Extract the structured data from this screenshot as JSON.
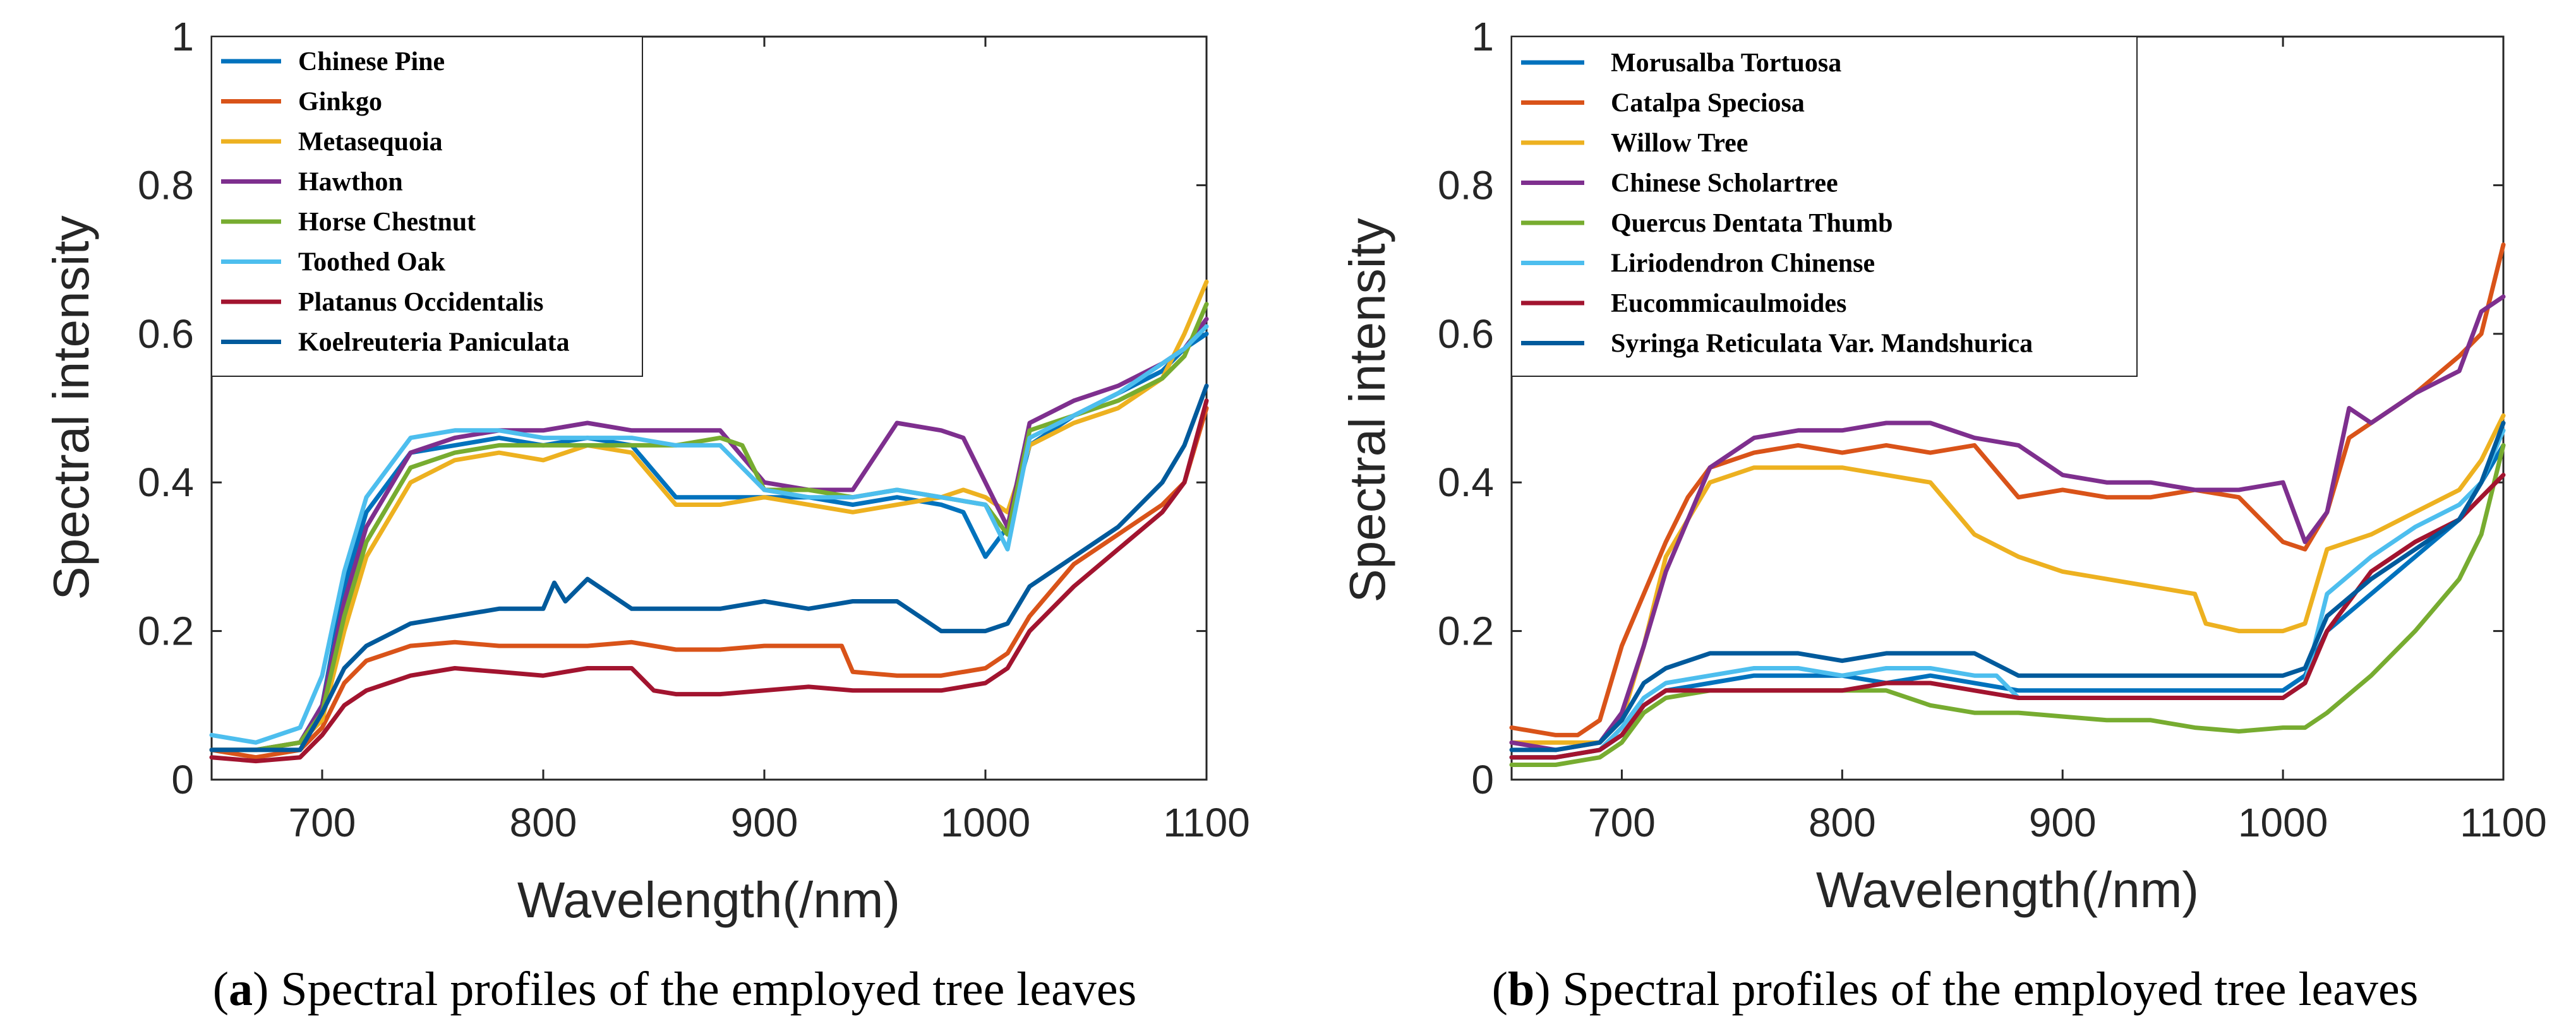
{
  "chart_data": [
    {
      "type": "line",
      "panel": "a",
      "caption_letter": "a",
      "caption_text": ") Spectral profiles of the employed tree leaves",
      "xlabel": "Wavelength(/nm)",
      "ylabel": "Spectral intensity",
      "xlim": [
        650,
        1100
      ],
      "ylim": [
        0,
        1
      ],
      "xticks": [
        700,
        800,
        900,
        1000,
        1100
      ],
      "yticks": [
        0,
        0.2,
        0.4,
        0.6,
        0.8,
        1
      ],
      "ytick_labels": [
        "0",
        "0.2",
        "0.4",
        "0.6",
        "0.8",
        "1"
      ],
      "legend_position": "top-left",
      "series": [
        {
          "name": "Chinese Pine",
          "color": "#0072BD",
          "x": [
            650,
            670,
            690,
            700,
            710,
            720,
            740,
            760,
            780,
            800,
            820,
            840,
            860,
            880,
            900,
            920,
            940,
            960,
            980,
            990,
            1000,
            1010,
            1020,
            1040,
            1060,
            1080,
            1090,
            1100
          ],
          "y": [
            0.04,
            0.04,
            0.05,
            0.1,
            0.26,
            0.36,
            0.44,
            0.45,
            0.46,
            0.45,
            0.46,
            0.45,
            0.38,
            0.38,
            0.38,
            0.38,
            0.37,
            0.38,
            0.37,
            0.36,
            0.3,
            0.34,
            0.45,
            0.49,
            0.52,
            0.55,
            0.58,
            0.6
          ]
        },
        {
          "name": "Ginkgo",
          "color": "#D95319",
          "x": [
            650,
            670,
            690,
            700,
            710,
            720,
            740,
            760,
            780,
            800,
            820,
            840,
            860,
            880,
            900,
            920,
            935,
            940,
            960,
            980,
            1000,
            1010,
            1020,
            1040,
            1060,
            1080,
            1090,
            1100
          ],
          "y": [
            0.04,
            0.03,
            0.04,
            0.07,
            0.13,
            0.16,
            0.18,
            0.185,
            0.18,
            0.18,
            0.18,
            0.185,
            0.175,
            0.175,
            0.18,
            0.18,
            0.18,
            0.145,
            0.14,
            0.14,
            0.15,
            0.17,
            0.22,
            0.29,
            0.33,
            0.37,
            0.4,
            0.5
          ]
        },
        {
          "name": "Metasequoia",
          "color": "#EDB120",
          "x": [
            650,
            670,
            690,
            700,
            710,
            720,
            740,
            760,
            780,
            800,
            820,
            840,
            860,
            880,
            900,
            920,
            940,
            960,
            980,
            990,
            1000,
            1010,
            1020,
            1040,
            1060,
            1080,
            1090,
            1100
          ],
          "y": [
            0.04,
            0.04,
            0.05,
            0.08,
            0.2,
            0.3,
            0.4,
            0.43,
            0.44,
            0.43,
            0.45,
            0.44,
            0.37,
            0.37,
            0.38,
            0.37,
            0.36,
            0.37,
            0.38,
            0.39,
            0.38,
            0.36,
            0.45,
            0.48,
            0.5,
            0.54,
            0.6,
            0.67
          ]
        },
        {
          "name": "Hawthon",
          "color": "#7E2F8E",
          "x": [
            650,
            670,
            690,
            700,
            710,
            720,
            740,
            760,
            780,
            800,
            820,
            840,
            860,
            880,
            900,
            920,
            940,
            960,
            980,
            990,
            1000,
            1010,
            1020,
            1040,
            1060,
            1080,
            1090,
            1100
          ],
          "y": [
            0.04,
            0.04,
            0.05,
            0.1,
            0.24,
            0.34,
            0.44,
            0.46,
            0.47,
            0.47,
            0.48,
            0.47,
            0.47,
            0.47,
            0.4,
            0.39,
            0.39,
            0.48,
            0.47,
            0.46,
            0.4,
            0.34,
            0.48,
            0.51,
            0.53,
            0.56,
            0.58,
            0.62
          ]
        },
        {
          "name": "Horse Chestnut",
          "color": "#77AC30",
          "x": [
            650,
            670,
            690,
            700,
            710,
            720,
            740,
            760,
            780,
            800,
            820,
            840,
            860,
            880,
            890,
            900,
            920,
            940,
            960,
            980,
            1000,
            1010,
            1020,
            1040,
            1060,
            1080,
            1090,
            1100
          ],
          "y": [
            0.04,
            0.04,
            0.05,
            0.09,
            0.22,
            0.32,
            0.42,
            0.44,
            0.45,
            0.45,
            0.45,
            0.45,
            0.45,
            0.46,
            0.45,
            0.39,
            0.39,
            0.38,
            0.39,
            0.38,
            0.37,
            0.33,
            0.47,
            0.49,
            0.51,
            0.54,
            0.57,
            0.64
          ]
        },
        {
          "name": "Toothed Oak",
          "color": "#4DBEEE",
          "x": [
            650,
            670,
            690,
            700,
            710,
            720,
            740,
            760,
            780,
            800,
            820,
            840,
            860,
            880,
            900,
            920,
            940,
            960,
            980,
            1000,
            1010,
            1020,
            1040,
            1060,
            1080,
            1090,
            1100
          ],
          "y": [
            0.06,
            0.05,
            0.07,
            0.14,
            0.28,
            0.38,
            0.46,
            0.47,
            0.47,
            0.46,
            0.46,
            0.46,
            0.45,
            0.45,
            0.39,
            0.38,
            0.38,
            0.39,
            0.38,
            0.37,
            0.31,
            0.46,
            0.49,
            0.52,
            0.56,
            0.58,
            0.61
          ]
        },
        {
          "name": "Platanus Occidentalis",
          "color": "#A2142F",
          "x": [
            650,
            670,
            690,
            700,
            710,
            720,
            740,
            760,
            780,
            800,
            820,
            840,
            850,
            860,
            880,
            900,
            920,
            940,
            960,
            980,
            1000,
            1010,
            1020,
            1040,
            1060,
            1080,
            1090,
            1100
          ],
          "y": [
            0.03,
            0.025,
            0.03,
            0.06,
            0.1,
            0.12,
            0.14,
            0.15,
            0.145,
            0.14,
            0.15,
            0.15,
            0.12,
            0.115,
            0.115,
            0.12,
            0.125,
            0.12,
            0.12,
            0.12,
            0.13,
            0.15,
            0.2,
            0.26,
            0.31,
            0.36,
            0.4,
            0.51
          ]
        },
        {
          "name": "Koelreuteria Paniculata",
          "color": "#005A9C",
          "x": [
            650,
            670,
            690,
            700,
            710,
            720,
            740,
            760,
            780,
            800,
            805,
            810,
            820,
            840,
            860,
            880,
            900,
            920,
            940,
            960,
            980,
            1000,
            1010,
            1020,
            1040,
            1060,
            1080,
            1090,
            1100
          ],
          "y": [
            0.04,
            0.04,
            0.04,
            0.09,
            0.15,
            0.18,
            0.21,
            0.22,
            0.23,
            0.23,
            0.265,
            0.24,
            0.27,
            0.23,
            0.23,
            0.23,
            0.24,
            0.23,
            0.24,
            0.24,
            0.2,
            0.2,
            0.21,
            0.26,
            0.3,
            0.34,
            0.4,
            0.45,
            0.53
          ]
        }
      ]
    },
    {
      "type": "line",
      "panel": "b",
      "caption_letter": "b",
      "caption_text": ") Spectral profiles of the employed tree leaves",
      "xlabel": "Wavelength(/nm)",
      "ylabel": "Spectral intensity",
      "xlim": [
        650,
        1100
      ],
      "ylim": [
        0,
        1
      ],
      "xticks": [
        700,
        800,
        900,
        1000,
        1100
      ],
      "yticks": [
        0,
        0.2,
        0.4,
        0.6,
        0.8,
        1
      ],
      "ytick_labels": [
        "0",
        "0.2",
        "0.4",
        "0.6",
        "0.8",
        "1"
      ],
      "legend_position": "top-left",
      "series": [
        {
          "name": "Morusalba Tortuosa",
          "color": "#0072BD",
          "x": [
            650,
            670,
            690,
            700,
            710,
            720,
            740,
            760,
            780,
            800,
            820,
            840,
            860,
            880,
            900,
            920,
            940,
            960,
            980,
            1000,
            1010,
            1020,
            1040,
            1060,
            1080,
            1090,
            1100
          ],
          "y": [
            0.03,
            0.03,
            0.04,
            0.06,
            0.1,
            0.12,
            0.13,
            0.14,
            0.14,
            0.14,
            0.13,
            0.14,
            0.13,
            0.12,
            0.12,
            0.12,
            0.12,
            0.12,
            0.12,
            0.12,
            0.14,
            0.2,
            0.25,
            0.3,
            0.35,
            0.4,
            0.45
          ]
        },
        {
          "name": "Catalpa Speciosa",
          "color": "#D95319",
          "x": [
            650,
            670,
            680,
            690,
            700,
            710,
            720,
            730,
            740,
            760,
            780,
            800,
            820,
            840,
            860,
            880,
            900,
            920,
            940,
            960,
            980,
            1000,
            1010,
            1020,
            1030,
            1040,
            1060,
            1080,
            1090,
            1100
          ],
          "y": [
            0.07,
            0.06,
            0.06,
            0.08,
            0.18,
            0.25,
            0.32,
            0.38,
            0.42,
            0.44,
            0.45,
            0.44,
            0.45,
            0.44,
            0.45,
            0.38,
            0.39,
            0.38,
            0.38,
            0.39,
            0.38,
            0.32,
            0.31,
            0.36,
            0.46,
            0.48,
            0.52,
            0.57,
            0.6,
            0.72
          ]
        },
        {
          "name": "Willow Tree",
          "color": "#EDB120",
          "x": [
            650,
            670,
            690,
            700,
            710,
            720,
            740,
            760,
            780,
            800,
            820,
            840,
            860,
            880,
            900,
            920,
            940,
            960,
            965,
            980,
            1000,
            1010,
            1020,
            1040,
            1060,
            1080,
            1090,
            1100
          ],
          "y": [
            0.05,
            0.05,
            0.05,
            0.08,
            0.18,
            0.3,
            0.4,
            0.42,
            0.42,
            0.42,
            0.41,
            0.4,
            0.33,
            0.3,
            0.28,
            0.27,
            0.26,
            0.25,
            0.21,
            0.2,
            0.2,
            0.21,
            0.31,
            0.33,
            0.36,
            0.39,
            0.43,
            0.49
          ]
        },
        {
          "name": "Chinese Scholartree",
          "color": "#7E2F8E",
          "x": [
            650,
            670,
            690,
            700,
            710,
            720,
            740,
            760,
            780,
            800,
            820,
            840,
            860,
            880,
            900,
            920,
            940,
            960,
            980,
            1000,
            1010,
            1020,
            1030,
            1040,
            1060,
            1080,
            1090,
            1100
          ],
          "y": [
            0.05,
            0.04,
            0.05,
            0.09,
            0.18,
            0.28,
            0.42,
            0.46,
            0.47,
            0.47,
            0.48,
            0.48,
            0.46,
            0.45,
            0.41,
            0.4,
            0.4,
            0.39,
            0.39,
            0.4,
            0.32,
            0.36,
            0.5,
            0.48,
            0.52,
            0.55,
            0.63,
            0.65
          ]
        },
        {
          "name": "Quercus Dentata Thumb",
          "color": "#77AC30",
          "x": [
            650,
            670,
            690,
            700,
            710,
            720,
            740,
            760,
            780,
            800,
            820,
            840,
            860,
            880,
            900,
            920,
            940,
            960,
            980,
            1000,
            1010,
            1020,
            1040,
            1060,
            1080,
            1090,
            1100
          ],
          "y": [
            0.02,
            0.02,
            0.03,
            0.05,
            0.09,
            0.11,
            0.12,
            0.12,
            0.12,
            0.12,
            0.12,
            0.1,
            0.09,
            0.09,
            0.085,
            0.08,
            0.08,
            0.07,
            0.065,
            0.07,
            0.07,
            0.09,
            0.14,
            0.2,
            0.27,
            0.33,
            0.45
          ]
        },
        {
          "name": "Liriodendron Chinense",
          "color": "#4DBEEE",
          "x": [
            650,
            670,
            690,
            700,
            710,
            720,
            740,
            760,
            780,
            800,
            820,
            840,
            860,
            870,
            880,
            900,
            920,
            940,
            960,
            980,
            1000,
            1010,
            1020,
            1040,
            1060,
            1080,
            1090,
            1100
          ],
          "y": [
            0.03,
            0.03,
            0.04,
            0.07,
            0.11,
            0.13,
            0.14,
            0.15,
            0.15,
            0.14,
            0.15,
            0.15,
            0.14,
            0.14,
            0.11,
            0.11,
            0.11,
            0.11,
            0.11,
            0.11,
            0.11,
            0.13,
            0.25,
            0.3,
            0.34,
            0.37,
            0.4,
            0.47
          ]
        },
        {
          "name": "Eucommicaulmoides",
          "color": "#A2142F",
          "x": [
            650,
            670,
            690,
            700,
            710,
            720,
            740,
            760,
            780,
            800,
            820,
            840,
            860,
            880,
            900,
            920,
            940,
            960,
            980,
            1000,
            1010,
            1020,
            1040,
            1060,
            1080,
            1090,
            1100
          ],
          "y": [
            0.03,
            0.03,
            0.04,
            0.06,
            0.1,
            0.12,
            0.12,
            0.12,
            0.12,
            0.12,
            0.13,
            0.13,
            0.12,
            0.11,
            0.11,
            0.11,
            0.11,
            0.11,
            0.11,
            0.11,
            0.13,
            0.2,
            0.28,
            0.32,
            0.35,
            0.38,
            0.41
          ]
        },
        {
          "name": "Syringa Reticulata Var. Mandshurica",
          "color": "#005A9C",
          "x": [
            650,
            670,
            690,
            700,
            710,
            720,
            740,
            760,
            780,
            800,
            820,
            840,
            860,
            880,
            900,
            920,
            940,
            960,
            980,
            1000,
            1010,
            1020,
            1040,
            1060,
            1080,
            1090,
            1100
          ],
          "y": [
            0.04,
            0.04,
            0.05,
            0.08,
            0.13,
            0.15,
            0.17,
            0.17,
            0.17,
            0.16,
            0.17,
            0.17,
            0.17,
            0.14,
            0.14,
            0.14,
            0.14,
            0.14,
            0.14,
            0.14,
            0.15,
            0.22,
            0.27,
            0.31,
            0.35,
            0.4,
            0.48
          ]
        }
      ]
    }
  ]
}
